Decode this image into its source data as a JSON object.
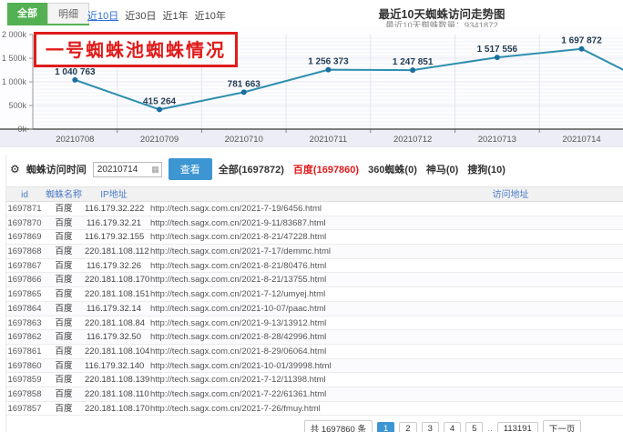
{
  "header": {
    "tabs": [
      {
        "label": "全部",
        "name": "all",
        "active": true
      },
      {
        "label": "明细",
        "name": "detail",
        "active": false
      }
    ],
    "range_links": [
      {
        "label": "近10日",
        "name": "last-10-days",
        "active": true
      },
      {
        "label": "近30日",
        "name": "last-30-days",
        "active": false
      },
      {
        "label": "近1年",
        "name": "last-1-year",
        "active": false
      },
      {
        "label": "近10年",
        "name": "last-10-years",
        "active": false
      }
    ],
    "title": "最近10天蜘蛛访问走势图",
    "subtitle": "最近10天蜘蛛数量：9341872"
  },
  "annotation": {
    "text": "一号蜘蛛池蜘蛛情况",
    "color": "#e01b1b"
  },
  "chart_data": {
    "type": "line",
    "title": "最近10天蜘蛛访问走势图",
    "subtitle": "最近10天蜘蛛数量：9341872",
    "categories": [
      "20210708",
      "20210709",
      "20210710",
      "20210711",
      "20210712",
      "20210713",
      "20210714"
    ],
    "values": [
      1040763,
      415264,
      781663,
      1256373,
      1247851,
      1517556,
      1697872
    ],
    "labels": [
      "1 040 763",
      "415 264",
      "781 663",
      "1 256 373",
      "1 247 851",
      "1 517 556",
      "1 697 872"
    ],
    "trailing_value_estimate": 800000,
    "ylim": [
      0,
      2000000
    ],
    "yticks": [
      {
        "value": 2000000,
        "label": "2 000k"
      },
      {
        "value": 1500000,
        "label": "1 500k"
      },
      {
        "value": 1000000,
        "label": "1 000k"
      },
      {
        "value": 500000,
        "label": "500k"
      },
      {
        "value": 0,
        "label": "0k"
      }
    ],
    "grid": true,
    "legend": "none",
    "line_color": "#2e8fae",
    "point_color": "#1a6f9f",
    "label_color": "#223c52"
  },
  "filter": {
    "gear_icon": "⚙",
    "label": "蜘蛛访问时间",
    "date_value": "20210714",
    "calendar_icon": "▦",
    "search_button": "查看",
    "counts": [
      {
        "label": "全部(1697872)",
        "name": "all",
        "red": false
      },
      {
        "label": "百度(1697860)",
        "name": "baidu",
        "red": true
      },
      {
        "label": "360蜘蛛(0)",
        "name": "360-spider",
        "red": false
      },
      {
        "label": "神马(0)",
        "name": "shenma",
        "red": false
      },
      {
        "label": "搜狗(10)",
        "name": "sogou",
        "red": false
      }
    ]
  },
  "table": {
    "columns": [
      "id",
      "蜘蛛名称",
      "IP地址",
      "访问地址"
    ],
    "column_names": [
      "id",
      "spider-name",
      "ip",
      "visit-url"
    ],
    "rows": [
      {
        "id": "1697871",
        "name": "百度",
        "ip": "116.179.32.222",
        "url": "http://tech.sagx.com.cn/2021-7-19/6456.html"
      },
      {
        "id": "1697870",
        "name": "百度",
        "ip": "116.179.32.21",
        "url": "http://tech.sagx.com.cn/2021-9-11/83687.html"
      },
      {
        "id": "1697869",
        "name": "百度",
        "ip": "116.179.32.155",
        "url": "http://tech.sagx.com.cn/2021-8-21/47228.html"
      },
      {
        "id": "1697868",
        "name": "百度",
        "ip": "220.181.108.112",
        "url": "http://tech.sagx.com.cn/2021-7-17/demmc.html"
      },
      {
        "id": "1697867",
        "name": "百度",
        "ip": "116.179.32.26",
        "url": "http://tech.sagx.com.cn/2021-8-21/80476.html"
      },
      {
        "id": "1697866",
        "name": "百度",
        "ip": "220.181.108.170",
        "url": "http://tech.sagx.com.cn/2021-8-21/13755.html"
      },
      {
        "id": "1697865",
        "name": "百度",
        "ip": "220.181.108.151",
        "url": "http://tech.sagx.com.cn/2021-7-12/umyej.html"
      },
      {
        "id": "1697864",
        "name": "百度",
        "ip": "116.179.32.14",
        "url": "http://tech.sagx.com.cn/2021-10-07/paac.html"
      },
      {
        "id": "1697863",
        "name": "百度",
        "ip": "220.181.108.84",
        "url": "http://tech.sagx.com.cn/2021-9-13/13912.html"
      },
      {
        "id": "1697862",
        "name": "百度",
        "ip": "116.179.32.50",
        "url": "http://tech.sagx.com.cn/2021-8-28/42996.html"
      },
      {
        "id": "1697861",
        "name": "百度",
        "ip": "220.181.108.104",
        "url": "http://tech.sagx.com.cn/2021-8-29/06064.html"
      },
      {
        "id": "1697860",
        "name": "百度",
        "ip": "116.179.32.140",
        "url": "http://tech.sagx.com.cn/2021-10-01/39998.html"
      },
      {
        "id": "1697859",
        "name": "百度",
        "ip": "220.181.108.139",
        "url": "http://tech.sagx.com.cn/2021-7-12/11398.html"
      },
      {
        "id": "1697858",
        "name": "百度",
        "ip": "220.181.108.110",
        "url": "http://tech.sagx.com.cn/2021-7-22/61361.html"
      },
      {
        "id": "1697857",
        "name": "百度",
        "ip": "220.181.108.170",
        "url": "http://tech.sagx.com.cn/2021-7-26/fmuy.html"
      }
    ]
  },
  "pagination": {
    "total": "共 1697860 条",
    "pages": [
      "1",
      "2",
      "3",
      "4",
      "5"
    ],
    "active_page": "1",
    "ellipsis": "..",
    "last_page": "113191",
    "next": "下一页"
  }
}
